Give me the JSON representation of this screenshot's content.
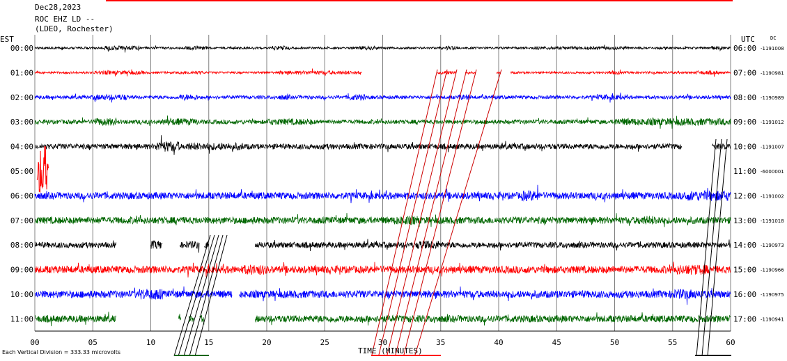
{
  "header": {
    "date": "Dec28,2023",
    "station": "ROC EHZ LD --",
    "network": "(LDEO, Rochester)",
    "left_tz": "EST",
    "right_tz": "UTC",
    "dc_label": "DC"
  },
  "footer": {
    "division_note": "Each Vertical Division =  333.33 microvolts",
    "time_label": "TIME (MINUTES)"
  },
  "chart_data": {
    "type": "line",
    "title": "Dec28,2023 ROC EHZ LD -- (LDEO, Rochester)",
    "xlabel": "TIME (MINUTES)",
    "xlim": [
      0,
      60
    ],
    "x_ticks": [
      "00",
      "05",
      "10",
      "15",
      "20",
      "25",
      "30",
      "35",
      "40",
      "45",
      "50",
      "55",
      "60"
    ],
    "vertical_division_microvolts": 333.33,
    "grid": "vertical lines every 5 minutes",
    "trace_colors": [
      "#000000",
      "#ff0000",
      "#0000ff",
      "#006600"
    ],
    "rows": [
      {
        "est": "00:00",
        "utc": "06:00",
        "dc": "-1191008",
        "amp": 0.28,
        "bursts": [
          [
            6,
            9,
            2.0
          ],
          [
            13,
            15,
            1.8
          ],
          [
            20.5,
            22,
            2.0
          ],
          [
            28,
            29.5,
            1.8
          ],
          [
            35.5,
            36.5,
            2.0
          ],
          [
            43,
            51,
            1.5
          ],
          [
            58,
            59.5,
            1.6
          ]
        ],
        "gaps": []
      },
      {
        "est": "01:00",
        "utc": "07:00",
        "dc": "-1190981",
        "amp": 0.28,
        "bursts": [
          [
            5,
            9.5,
            1.8
          ],
          [
            12.5,
            14.5,
            1.6
          ],
          [
            21,
            28,
            1.8
          ],
          [
            35,
            36.5,
            1.8
          ],
          [
            49.5,
            50.5,
            1.8
          ],
          [
            57,
            59,
            1.8
          ]
        ],
        "gaps": [
          [
            28.2,
            34.7
          ],
          [
            36.3,
            37.1
          ],
          [
            38,
            39.8
          ],
          [
            40.2,
            41
          ]
        ]
      },
      {
        "est": "02:00",
        "utc": "08:00",
        "dc": "-1190989",
        "amp": 0.45,
        "bursts": [
          [
            5,
            8,
            1.7
          ],
          [
            12.5,
            14,
            1.8
          ],
          [
            21,
            22,
            1.5
          ],
          [
            27,
            28.5,
            1.8
          ],
          [
            36.5,
            37.5,
            1.6
          ],
          [
            48.5,
            51,
            1.5
          ]
        ],
        "gaps": []
      },
      {
        "est": "03:00",
        "utc": "09:00",
        "dc": "-1191012",
        "amp": 0.55,
        "bursts": [
          [
            5,
            7,
            1.8
          ],
          [
            11,
            14,
            1.6
          ],
          [
            20,
            24,
            1.5
          ],
          [
            50,
            60,
            1.7
          ]
        ],
        "gaps": []
      },
      {
        "est": "04:00",
        "utc": "10:00",
        "dc": "-1191007",
        "amp": 0.7,
        "bursts": [
          [
            10.5,
            12.5,
            2.0
          ],
          [
            13,
            18,
            1.4
          ]
        ],
        "gaps": [
          [
            55.8,
            58.4
          ]
        ]
      },
      {
        "est": "05:00",
        "utc": "11:00",
        "dc": "-6000001",
        "amp": 0,
        "bursts": [],
        "gaps": [],
        "spike": [
          0.2,
          1.2
        ]
      },
      {
        "est": "06:00",
        "utc": "12:00",
        "dc": "-1191002",
        "amp": 0.9,
        "bursts": [
          [
            42,
            43.5,
            1.5
          ],
          [
            56,
            60,
            1.5
          ]
        ],
        "gaps": []
      },
      {
        "est": "07:00",
        "utc": "13:00",
        "dc": "-1191018",
        "amp": 0.9,
        "bursts": [
          [
            31,
            33,
            1.3
          ],
          [
            52,
            54,
            1.3
          ]
        ],
        "gaps": []
      },
      {
        "est": "08:00",
        "utc": "14:00",
        "dc": "-1190973",
        "amp": 0.75,
        "bursts": [
          [
            10,
            11,
            1.5
          ],
          [
            13,
            15,
            1.3
          ],
          [
            33,
            35,
            1.5
          ]
        ],
        "gaps": [
          [
            7,
            10
          ],
          [
            11,
            12.5
          ],
          [
            14.2,
            14.6
          ],
          [
            15,
            19
          ]
        ]
      },
      {
        "est": "09:00",
        "utc": "15:00",
        "dc": "-1190966",
        "amp": 0.95,
        "bursts": [
          [
            18,
            20,
            1.4
          ],
          [
            55,
            58,
            1.4
          ]
        ],
        "gaps": []
      },
      {
        "est": "10:00",
        "utc": "16:00",
        "dc": "-1190975",
        "amp": 0.95,
        "bursts": [
          [
            9,
            11,
            1.5
          ],
          [
            55,
            57,
            1.4
          ]
        ],
        "gaps": [
          [
            17,
            17.6
          ]
        ]
      },
      {
        "est": "11:00",
        "utc": "17:00",
        "dc": "-1190941",
        "amp": 0.9,
        "bursts": [],
        "gaps": [
          [
            7,
            12.4
          ],
          [
            12.6,
            13.3
          ],
          [
            13.7,
            14.2
          ],
          [
            14.6,
            19
          ]
        ]
      }
    ],
    "chart_colors": {
      "grid": "#808080",
      "header_red": "#ff0000",
      "annotation_red": "#cc0000"
    }
  }
}
